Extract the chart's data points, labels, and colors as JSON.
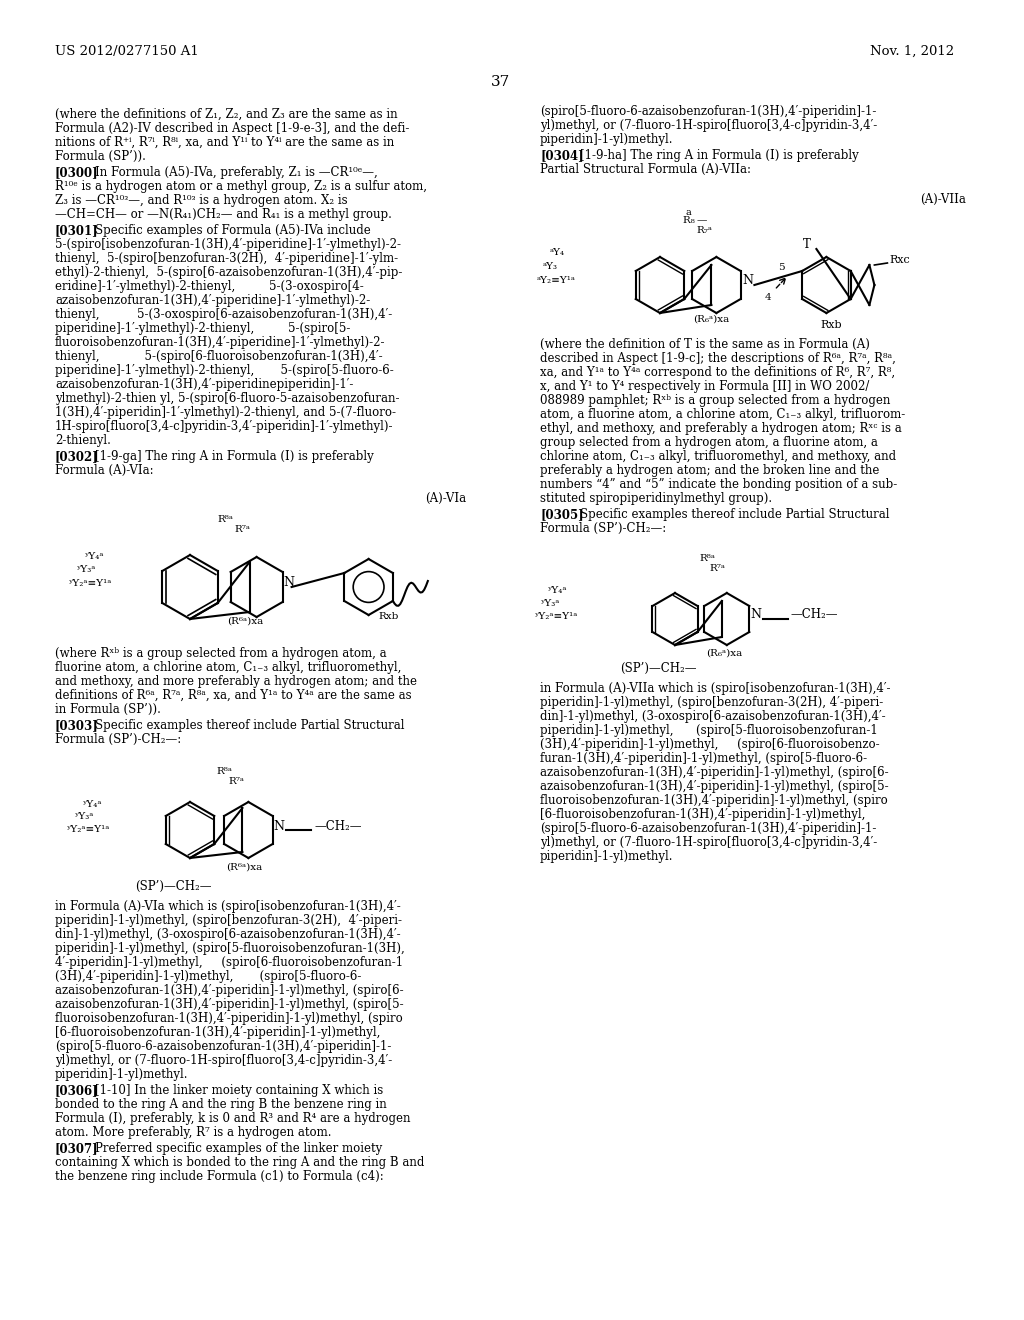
{
  "page_header_left": "US 2012/0277150 A1",
  "page_header_right": "Nov. 1, 2012",
  "page_number": "37",
  "background_color": "#ffffff",
  "text_color": "#000000",
  "figsize": [
    10.24,
    13.2
  ],
  "dpi": 100
}
